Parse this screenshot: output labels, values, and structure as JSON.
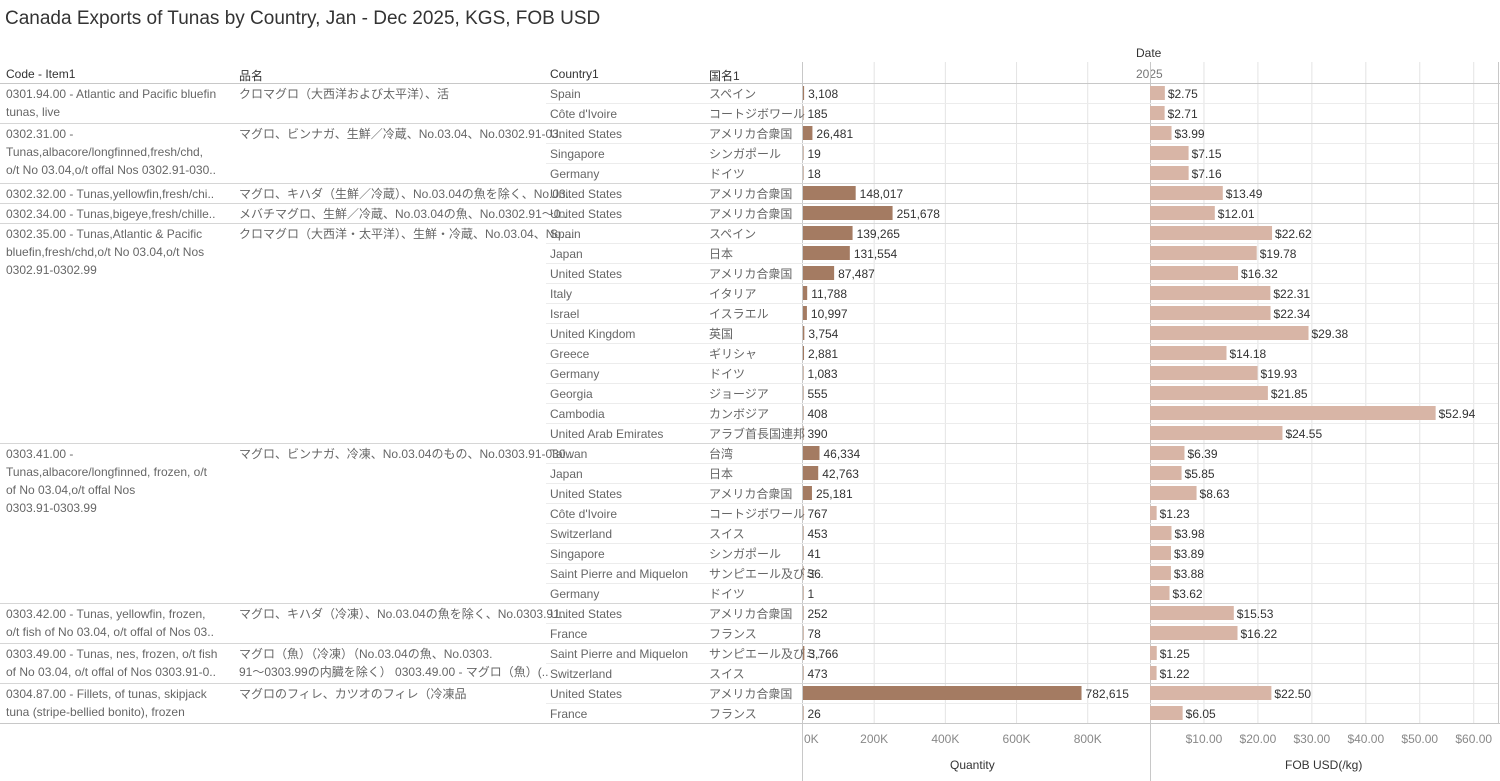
{
  "title": "Canada Exports of Tunas by Country, Jan - Dec 2025, KGS, FOB USD",
  "headers": {
    "date": "Date",
    "year": "2025",
    "code_item": "Code - Item1",
    "jp_item": "品名",
    "country": "Country1",
    "jp_country": "国名1",
    "quantity": "Quantity",
    "fob": "FOB USD(/kg)"
  },
  "colors": {
    "quantity_bar": "#a47b62",
    "fob_bar": "#d8b5a6",
    "grid": "#e4e4e4",
    "divider": "#c8c8c8"
  },
  "chart_data": {
    "type": "bar",
    "groups": [
      {
        "code_lines": [
          "0301.94.00 - Atlantic and Pacific bluefin",
          "tunas, live"
        ],
        "jp_lines": [
          "クロマグロ（大西洋および太平洋）、活"
        ],
        "rows": 2
      },
      {
        "code_lines": [
          "0302.31.00 -",
          "Tunas,albacore/longfinned,fresh/chd,",
          "o/t No 03.04,o/t offal Nos 0302.91-030.."
        ],
        "jp_lines": [
          "マグロ、ビンナガ、生鮮／冷蔵、No.03.04、No.0302.91-03.."
        ],
        "rows": 3
      },
      {
        "code_lines": [
          "0302.32.00 - Tunas,yellowfin,fresh/chi.."
        ],
        "jp_lines": [
          "マグロ、キハダ（生鮮／冷蔵）、No.03.04の魚を除く、No.03.."
        ],
        "rows": 1
      },
      {
        "code_lines": [
          "0302.34.00 - Tunas,bigeye,fresh/chille.."
        ],
        "jp_lines": [
          "メバチマグロ、生鮮／冷蔵、No.03.04の魚、No.0302.91～0.."
        ],
        "rows": 1
      },
      {
        "code_lines": [
          "0302.35.00 - Tunas,Atlantic & Pacific",
          "bluefin,fresh/chd,o/t No 03.04,o/t Nos",
          "0302.91-0302.99"
        ],
        "jp_lines": [
          "クロマグロ（大西洋・太平洋）、生鮮・冷蔵、No.03.04、No...."
        ],
        "rows": 11
      },
      {
        "code_lines": [
          "0303.41.00 -",
          "Tunas,albacore/longfinned, frozen, o/t",
          "of No 03.04,o/t offal Nos",
          "0303.91-0303.99"
        ],
        "jp_lines": [
          "マグロ、ビンナガ、冷凍、No.03.04のもの、No.0303.91-030.."
        ],
        "rows": 8
      },
      {
        "code_lines": [
          "0303.42.00 - Tunas, yellowfin, frozen,",
          "o/t fish of No 03.04, o/t offal of Nos 03.."
        ],
        "jp_lines": [
          "マグロ、キハダ（冷凍）、No.03.04の魚を除く、No.0303.91.."
        ],
        "rows": 2
      },
      {
        "code_lines": [
          "0303.49.00 - Tunas, nes, frozen, o/t fish",
          "of No 03.04, o/t offal of Nos 0303.91-0.."
        ],
        "jp_lines": [
          "マグロ（魚）（冷凍）（No.03.04の魚、No.0303.",
          "91～0303.99の内臓を除く） 0303.49.00 - マグロ（魚）(.."
        ],
        "rows": 2
      },
      {
        "code_lines": [
          "0304.87.00 - Fillets, of tunas, skipjack",
          "tuna (stripe-bellied bonito), frozen"
        ],
        "jp_lines": [
          "マグロのフィレ、カツオのフィレ（冷凍品"
        ],
        "rows": 2
      }
    ],
    "rows": [
      {
        "country": "Spain",
        "jp": "スペイン",
        "qty": 3108,
        "qty_label": "3,108",
        "fob": 2.75,
        "fob_label": "$2.75"
      },
      {
        "country": "Côte d'Ivoire",
        "jp": "コートジボワール",
        "qty": 185,
        "qty_label": "185",
        "fob": 2.71,
        "fob_label": "$2.71"
      },
      {
        "country": "United States",
        "jp": "アメリカ合衆国",
        "qty": 26481,
        "qty_label": "26,481",
        "fob": 3.99,
        "fob_label": "$3.99"
      },
      {
        "country": "Singapore",
        "jp": "シンガポール",
        "qty": 19,
        "qty_label": "19",
        "fob": 7.15,
        "fob_label": "$7.15"
      },
      {
        "country": "Germany",
        "jp": "ドイツ",
        "qty": 18,
        "qty_label": "18",
        "fob": 7.16,
        "fob_label": "$7.16"
      },
      {
        "country": "United States",
        "jp": "アメリカ合衆国",
        "qty": 148017,
        "qty_label": "148,017",
        "fob": 13.49,
        "fob_label": "$13.49"
      },
      {
        "country": "United States",
        "jp": "アメリカ合衆国",
        "qty": 251678,
        "qty_label": "251,678",
        "fob": 12.01,
        "fob_label": "$12.01"
      },
      {
        "country": "Spain",
        "jp": "スペイン",
        "qty": 139265,
        "qty_label": "139,265",
        "fob": 22.62,
        "fob_label": "$22.62"
      },
      {
        "country": "Japan",
        "jp": "日本",
        "qty": 131554,
        "qty_label": "131,554",
        "fob": 19.78,
        "fob_label": "$19.78"
      },
      {
        "country": "United States",
        "jp": "アメリカ合衆国",
        "qty": 87487,
        "qty_label": "87,487",
        "fob": 16.32,
        "fob_label": "$16.32"
      },
      {
        "country": "Italy",
        "jp": "イタリア",
        "qty": 11788,
        "qty_label": "11,788",
        "fob": 22.31,
        "fob_label": "$22.31"
      },
      {
        "country": "Israel",
        "jp": "イスラエル",
        "qty": 10997,
        "qty_label": "10,997",
        "fob": 22.34,
        "fob_label": "$22.34"
      },
      {
        "country": "United Kingdom",
        "jp": "英国",
        "qty": 3754,
        "qty_label": "3,754",
        "fob": 29.38,
        "fob_label": "$29.38"
      },
      {
        "country": "Greece",
        "jp": "ギリシャ",
        "qty": 2881,
        "qty_label": "2,881",
        "fob": 14.18,
        "fob_label": "$14.18"
      },
      {
        "country": "Germany",
        "jp": "ドイツ",
        "qty": 1083,
        "qty_label": "1,083",
        "fob": 19.93,
        "fob_label": "$19.93"
      },
      {
        "country": "Georgia",
        "jp": "ジョージア",
        "qty": 555,
        "qty_label": "555",
        "fob": 21.85,
        "fob_label": "$21.85"
      },
      {
        "country": "Cambodia",
        "jp": "カンボジア",
        "qty": 408,
        "qty_label": "408",
        "fob": 52.94,
        "fob_label": "$52.94"
      },
      {
        "country": "United Arab Emirates",
        "jp": "アラブ首長国連邦",
        "qty": 390,
        "qty_label": "390",
        "fob": 24.55,
        "fob_label": "$24.55"
      },
      {
        "country": "Taiwan",
        "jp": "台湾",
        "qty": 46334,
        "qty_label": "46,334",
        "fob": 6.39,
        "fob_label": "$6.39"
      },
      {
        "country": "Japan",
        "jp": "日本",
        "qty": 42763,
        "qty_label": "42,763",
        "fob": 5.85,
        "fob_label": "$5.85"
      },
      {
        "country": "United States",
        "jp": "アメリカ合衆国",
        "qty": 25181,
        "qty_label": "25,181",
        "fob": 8.63,
        "fob_label": "$8.63"
      },
      {
        "country": "Côte d'Ivoire",
        "jp": "コートジボワール",
        "qty": 767,
        "qty_label": "767",
        "fob": 1.23,
        "fob_label": "$1.23"
      },
      {
        "country": "Switzerland",
        "jp": "スイス",
        "qty": 453,
        "qty_label": "453",
        "fob": 3.98,
        "fob_label": "$3.98"
      },
      {
        "country": "Singapore",
        "jp": "シンガポール",
        "qty": 41,
        "qty_label": "41",
        "fob": 3.89,
        "fob_label": "$3.89"
      },
      {
        "country": "Saint Pierre and Miquelon",
        "jp": "サンピエール及びミ..",
        "qty": 36,
        "qty_label": "36",
        "fob": 3.88,
        "fob_label": "$3.88"
      },
      {
        "country": "Germany",
        "jp": "ドイツ",
        "qty": 1,
        "qty_label": "1",
        "fob": 3.62,
        "fob_label": "$3.62"
      },
      {
        "country": "United States",
        "jp": "アメリカ合衆国",
        "qty": 252,
        "qty_label": "252",
        "fob": 15.53,
        "fob_label": "$15.53"
      },
      {
        "country": "France",
        "jp": "フランス",
        "qty": 78,
        "qty_label": "78",
        "fob": 16.22,
        "fob_label": "$16.22"
      },
      {
        "country": "Saint Pierre and Miquelon",
        "jp": "サンピエール及びミ..",
        "qty": 3766,
        "qty_label": "3,766",
        "fob": 1.25,
        "fob_label": "$1.25"
      },
      {
        "country": "Switzerland",
        "jp": "スイス",
        "qty": 473,
        "qty_label": "473",
        "fob": 1.22,
        "fob_label": "$1.22"
      },
      {
        "country": "United States",
        "jp": "アメリカ合衆国",
        "qty": 782615,
        "qty_label": "782,615",
        "fob": 22.5,
        "fob_label": "$22.50"
      },
      {
        "country": "France",
        "jp": "フランス",
        "qty": 26,
        "qty_label": "26",
        "fob": 6.05,
        "fob_label": "$6.05"
      }
    ],
    "quantity_axis": {
      "ticks": [
        0,
        200000,
        400000,
        600000,
        800000
      ],
      "tick_labels": [
        "0K",
        "200K",
        "400K",
        "600K",
        "800K"
      ],
      "xlim": [
        0,
        975000
      ]
    },
    "fob_axis": {
      "ticks": [
        10,
        20,
        30,
        40,
        50,
        60
      ],
      "tick_labels": [
        "$10.00",
        "$20.00",
        "$30.00",
        "$40.00",
        "$50.00",
        "$60.00"
      ],
      "xlim": [
        0,
        64.5
      ]
    }
  }
}
